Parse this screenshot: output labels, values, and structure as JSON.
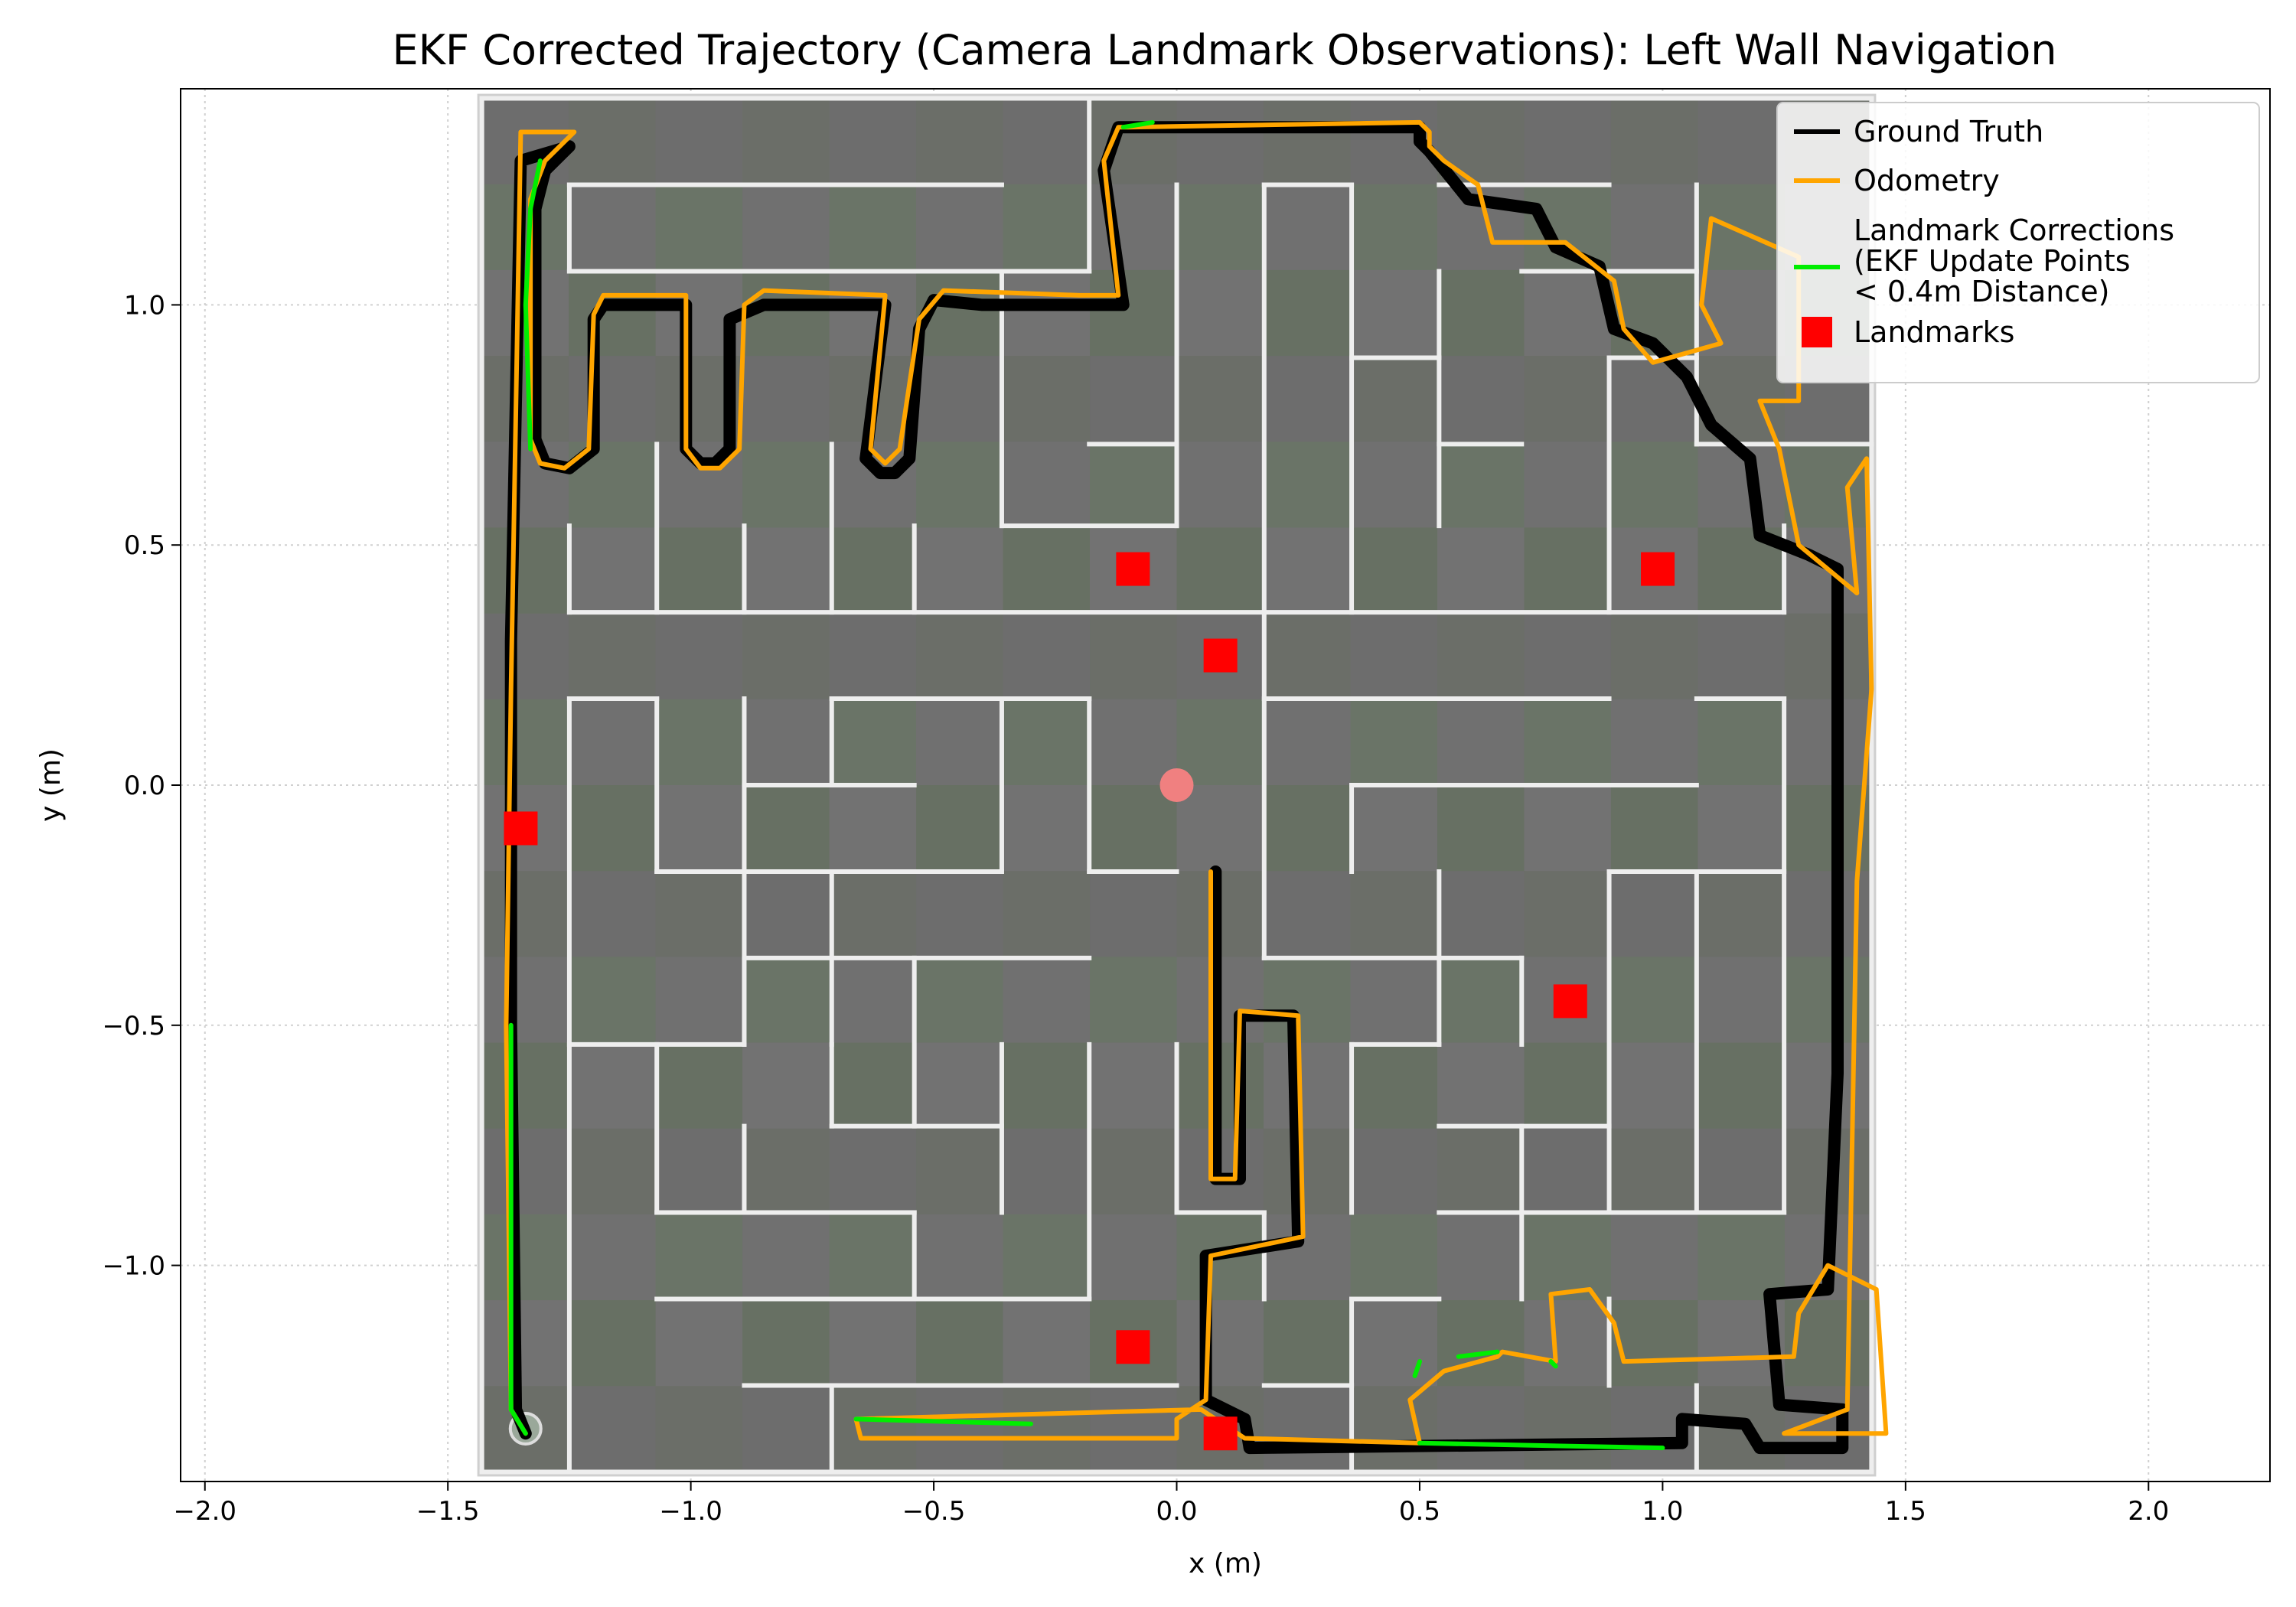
{
  "chart_data": {
    "type": "line",
    "title": "EKF Corrected Trajectory (Camera Landmark Observations): Left Wall Navigation",
    "xlabel": "x (m)",
    "ylabel": "y (m)",
    "xlim": [
      -2.05,
      2.25
    ],
    "ylim": [
      -1.45,
      1.45
    ],
    "xticks": [
      -2.0,
      -1.5,
      -1.0,
      -0.5,
      0.0,
      0.5,
      1.0,
      1.5,
      2.0
    ],
    "xtick_labels": [
      "−2.0",
      "−1.5",
      "−1.0",
      "−0.5",
      "0.0",
      "0.5",
      "1.0",
      "1.5",
      "2.0"
    ],
    "yticks": [
      -1.0,
      -0.5,
      0.0,
      0.5,
      1.0
    ],
    "ytick_labels": [
      "−1.0",
      "−0.5",
      "0.0",
      "0.5",
      "1.0"
    ],
    "grid": true,
    "legend_position": "top-right",
    "background_image": "maze-map",
    "map_extent": {
      "x": [
        -1.43,
        1.43
      ],
      "y": [
        -1.43,
        1.43
      ]
    },
    "start_marker": {
      "x": 0.0,
      "y": 0.0,
      "color": "#f08080"
    },
    "series": [
      {
        "name": "Ground Truth",
        "color": "#000000",
        "points": [
          [
            0.08,
            -0.18
          ],
          [
            0.08,
            -0.82
          ],
          [
            0.13,
            -0.82
          ],
          [
            0.13,
            -0.48
          ],
          [
            0.24,
            -0.48
          ],
          [
            0.25,
            -0.95
          ],
          [
            0.06,
            -0.98
          ],
          [
            0.06,
            -1.28
          ],
          [
            0.14,
            -1.32
          ],
          [
            0.15,
            -1.38
          ],
          [
            1.04,
            -1.37
          ],
          [
            1.04,
            -1.32
          ],
          [
            1.17,
            -1.33
          ],
          [
            1.2,
            -1.38
          ],
          [
            1.37,
            -1.38
          ],
          [
            1.37,
            -1.3
          ],
          [
            1.24,
            -1.29
          ],
          [
            1.22,
            -1.06
          ],
          [
            1.34,
            -1.05
          ],
          [
            1.36,
            -0.6
          ],
          [
            1.36,
            0.45
          ],
          [
            1.3,
            0.48
          ],
          [
            1.2,
            0.52
          ],
          [
            1.18,
            0.68
          ],
          [
            1.1,
            0.75
          ],
          [
            1.05,
            0.85
          ],
          [
            0.98,
            0.92
          ],
          [
            0.9,
            0.95
          ],
          [
            0.87,
            1.08
          ],
          [
            0.78,
            1.12
          ],
          [
            0.74,
            1.2
          ],
          [
            0.6,
            1.22
          ],
          [
            0.52,
            1.32
          ],
          [
            0.5,
            1.34
          ],
          [
            0.5,
            1.37
          ],
          [
            -0.12,
            1.37
          ],
          [
            -0.15,
            1.28
          ],
          [
            -0.11,
            1.0
          ],
          [
            -0.4,
            1.0
          ],
          [
            -0.5,
            1.01
          ],
          [
            -0.53,
            0.95
          ],
          [
            -0.55,
            0.68
          ],
          [
            -0.58,
            0.65
          ],
          [
            -0.61,
            0.65
          ],
          [
            -0.64,
            0.68
          ],
          [
            -0.6,
            1.0
          ],
          [
            -0.85,
            1.0
          ],
          [
            -0.92,
            0.97
          ],
          [
            -0.92,
            0.7
          ],
          [
            -0.95,
            0.67
          ],
          [
            -0.98,
            0.67
          ],
          [
            -1.01,
            0.7
          ],
          [
            -1.01,
            1.0
          ],
          [
            -1.18,
            1.0
          ],
          [
            -1.2,
            0.97
          ],
          [
            -1.2,
            0.7
          ],
          [
            -1.25,
            0.66
          ],
          [
            -1.3,
            0.67
          ],
          [
            -1.32,
            0.72
          ],
          [
            -1.32,
            1.2
          ],
          [
            -1.3,
            1.28
          ],
          [
            -1.25,
            1.33
          ],
          [
            -1.35,
            1.3
          ],
          [
            -1.37,
            0.3
          ],
          [
            -1.37,
            -0.5
          ],
          [
            -1.36,
            -1.3
          ],
          [
            -1.34,
            -1.35
          ]
        ]
      },
      {
        "name": "Odometry",
        "color": "#ffa500",
        "points": [
          [
            0.07,
            -0.18
          ],
          [
            0.07,
            -0.82
          ],
          [
            0.12,
            -0.82
          ],
          [
            0.13,
            -0.47
          ],
          [
            0.25,
            -0.48
          ],
          [
            0.26,
            -0.94
          ],
          [
            0.07,
            -0.98
          ],
          [
            0.06,
            -1.28
          ],
          [
            0.0,
            -1.32
          ],
          [
            0.0,
            -1.36
          ],
          [
            -0.65,
            -1.36
          ],
          [
            -0.66,
            -1.32
          ],
          [
            0.05,
            -1.3
          ],
          [
            0.14,
            -1.36
          ],
          [
            0.5,
            -1.37
          ],
          [
            0.48,
            -1.28
          ],
          [
            0.55,
            -1.22
          ],
          [
            0.66,
            -1.19
          ],
          [
            0.67,
            -1.18
          ],
          [
            0.78,
            -1.2
          ],
          [
            0.77,
            -1.06
          ],
          [
            0.85,
            -1.05
          ],
          [
            0.9,
            -1.12
          ],
          [
            0.92,
            -1.2
          ],
          [
            1.27,
            -1.19
          ],
          [
            1.28,
            -1.1
          ],
          [
            1.34,
            -1.0
          ],
          [
            1.44,
            -1.05
          ],
          [
            1.46,
            -1.35
          ],
          [
            1.25,
            -1.35
          ],
          [
            1.38,
            -1.3
          ],
          [
            1.4,
            -0.2
          ],
          [
            1.43,
            0.2
          ],
          [
            1.42,
            0.68
          ],
          [
            1.38,
            0.62
          ],
          [
            1.4,
            0.4
          ],
          [
            1.28,
            0.5
          ],
          [
            1.24,
            0.7
          ],
          [
            1.2,
            0.8
          ],
          [
            1.28,
            0.8
          ],
          [
            1.28,
            1.1
          ],
          [
            1.1,
            1.18
          ],
          [
            1.08,
            1.0
          ],
          [
            1.12,
            0.92
          ],
          [
            0.98,
            0.88
          ],
          [
            0.92,
            0.95
          ],
          [
            0.9,
            1.05
          ],
          [
            0.8,
            1.13
          ],
          [
            0.65,
            1.13
          ],
          [
            0.62,
            1.25
          ],
          [
            0.55,
            1.3
          ],
          [
            0.52,
            1.33
          ],
          [
            0.52,
            1.36
          ],
          [
            0.5,
            1.38
          ],
          [
            -0.1,
            1.37
          ],
          [
            -0.12,
            1.37
          ],
          [
            -0.15,
            1.3
          ],
          [
            -0.12,
            1.02
          ],
          [
            -0.2,
            1.02
          ],
          [
            -0.48,
            1.03
          ],
          [
            -0.53,
            0.97
          ],
          [
            -0.57,
            0.7
          ],
          [
            -0.6,
            0.67
          ],
          [
            -0.63,
            0.7
          ],
          [
            -0.6,
            1.02
          ],
          [
            -0.85,
            1.03
          ],
          [
            -0.89,
            1.0
          ],
          [
            -0.9,
            0.7
          ],
          [
            -0.94,
            0.66
          ],
          [
            -0.98,
            0.66
          ],
          [
            -1.01,
            0.7
          ],
          [
            -1.01,
            1.02
          ],
          [
            -1.18,
            1.02
          ],
          [
            -1.2,
            0.98
          ],
          [
            -1.21,
            0.7
          ],
          [
            -1.26,
            0.66
          ],
          [
            -1.31,
            0.67
          ],
          [
            -1.33,
            0.72
          ],
          [
            -1.33,
            1.22
          ],
          [
            -1.3,
            1.3
          ],
          [
            -1.24,
            1.36
          ],
          [
            -1.35,
            1.36
          ],
          [
            -1.37,
            0.2
          ],
          [
            -1.38,
            -0.5
          ],
          [
            -1.37,
            -1.3
          ],
          [
            -1.34,
            -1.35
          ]
        ]
      },
      {
        "name": "Landmark Corrections\n(EKF Update Points\n< 0.4m Distance)",
        "legend_lines": [
          "Landmark Corrections",
          "(EKF Update Points",
          "< 0.4m Distance)"
        ],
        "color": "#00ee00",
        "segments": [
          [
            [
              -1.37,
              -0.5
            ],
            [
              -1.37,
              -1.3
            ],
            [
              -1.34,
              -1.35
            ]
          ],
          [
            [
              -1.33,
              0.7
            ],
            [
              -1.34,
              1.0
            ],
            [
              -1.33,
              1.2
            ],
            [
              -1.31,
              1.3
            ]
          ],
          [
            [
              -0.66,
              -1.32
            ],
            [
              -0.3,
              -1.33
            ]
          ],
          [
            [
              0.5,
              -1.37
            ],
            [
              1.0,
              -1.38
            ]
          ],
          [
            [
              0.49,
              -1.23
            ],
            [
              0.5,
              -1.2
            ]
          ],
          [
            [
              0.58,
              -1.19
            ],
            [
              0.66,
              -1.18
            ]
          ],
          [
            [
              0.77,
              -1.2
            ],
            [
              0.78,
              -1.21
            ]
          ],
          [
            [
              -0.11,
              1.37
            ],
            [
              -0.05,
              1.38
            ]
          ]
        ]
      },
      {
        "name": "Landmarks",
        "color": "#ff0000",
        "marker": "square",
        "points": [
          [
            -0.09,
            0.45
          ],
          [
            0.09,
            0.27
          ],
          [
            0.99,
            0.45
          ],
          [
            -1.35,
            -0.09
          ],
          [
            0.81,
            -0.45
          ],
          [
            -0.09,
            -1.17
          ],
          [
            0.09,
            -1.35
          ]
        ]
      }
    ]
  }
}
